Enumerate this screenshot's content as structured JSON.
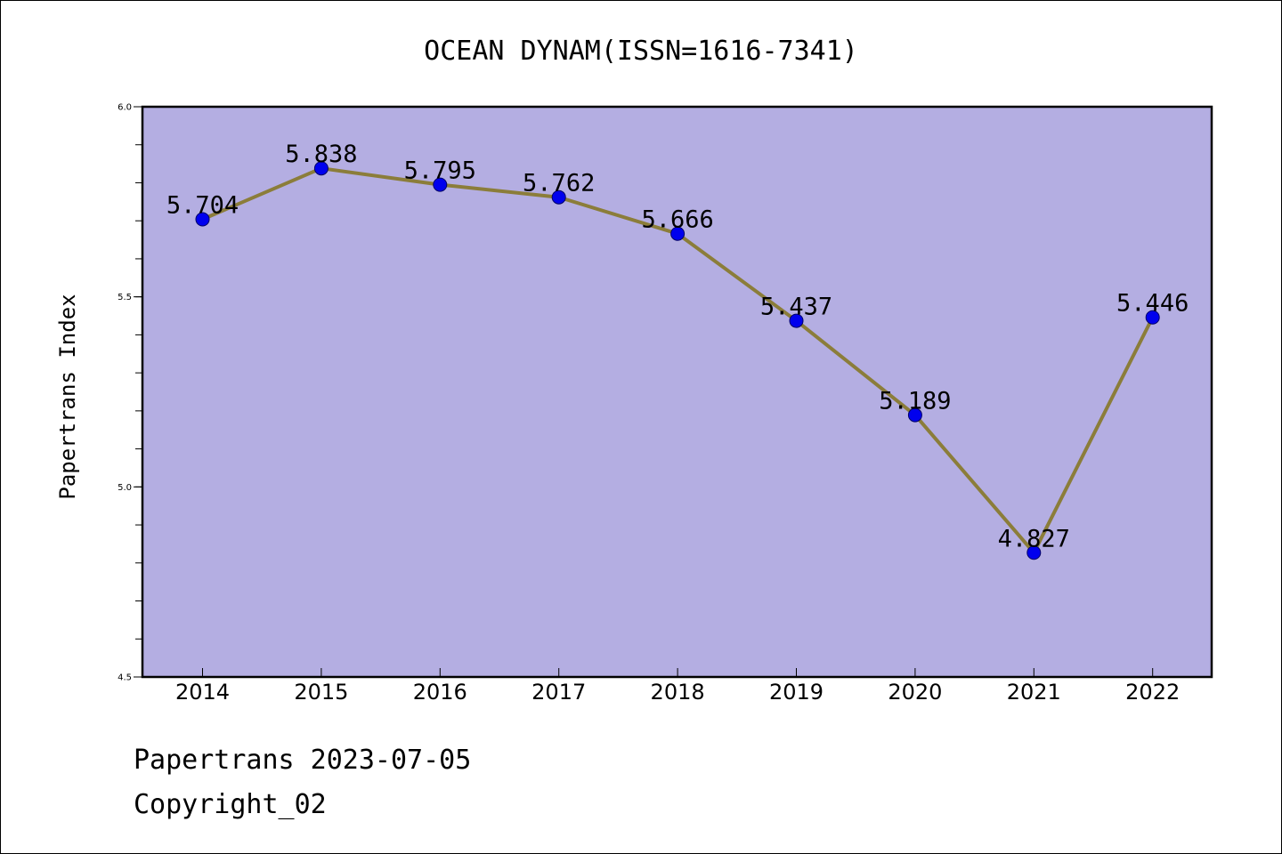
{
  "chart_data": {
    "type": "line",
    "title": "OCEAN DYNAM(ISSN=1616-7341)",
    "xlabel": "",
    "ylabel": "Papertrans Index",
    "categories": [
      "2014",
      "2015",
      "2016",
      "2017",
      "2018",
      "2019",
      "2020",
      "2021",
      "2022"
    ],
    "series": [
      {
        "values": [
          5.704,
          5.838,
          5.795,
          5.762,
          5.666,
          5.437,
          5.189,
          4.827,
          5.446
        ],
        "data_labels": [
          "5.704",
          "5.838",
          "5.795",
          "5.762",
          "5.666",
          "5.437",
          "5.189",
          "4.827",
          "5.446"
        ]
      }
    ],
    "ylim": [
      4.5,
      6.0
    ],
    "yticks": [
      "4.5",
      "5.0",
      "5.5",
      "6.0"
    ],
    "grid": false,
    "legend": "none",
    "colors": {
      "plot_background": "#b4aee2",
      "line": "#8b7d3a",
      "marker": "#0000ee",
      "frame": "#000000"
    }
  },
  "footer": {
    "source": "Papertrans 2023-07-05",
    "copyright": "Copyright_02"
  }
}
